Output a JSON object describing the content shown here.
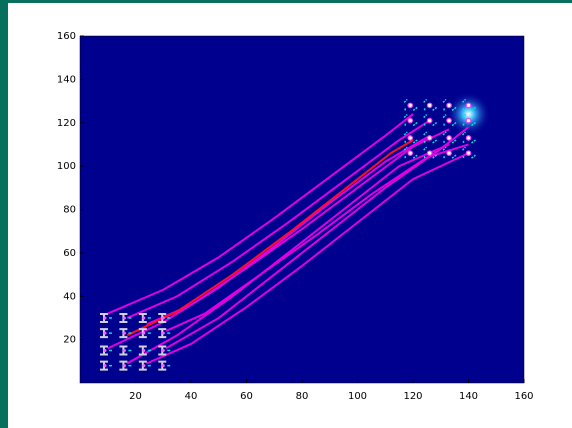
{
  "chart_data": {
    "type": "line",
    "xlim": [
      0,
      160
    ],
    "ylim": [
      0,
      160
    ],
    "xticks": [
      20,
      40,
      60,
      80,
      100,
      120,
      140,
      160
    ],
    "yticks": [
      20,
      40,
      60,
      80,
      100,
      120,
      140,
      160
    ],
    "background": "#00008f",
    "grid": false,
    "series": [
      {
        "color": "#e000e0",
        "x": [
          10,
          30,
          50,
          70,
          90,
          110,
          120
        ],
        "values": [
          32,
          43,
          58,
          76,
          95,
          114,
          124
        ]
      },
      {
        "color": "#e000e0",
        "x": [
          17,
          35,
          55,
          75,
          95,
          115,
          126
        ],
        "values": [
          30,
          40,
          56,
          74,
          93,
          112,
          121
        ]
      },
      {
        "color": "#e000e0",
        "x": [
          24,
          40,
          60,
          80,
          100,
          120,
          133
        ],
        "values": [
          27,
          36,
          53,
          71,
          90,
          109,
          117
        ]
      },
      {
        "color": "#e000e0",
        "x": [
          31,
          45,
          65,
          85,
          105,
          125,
          140
        ],
        "values": [
          24,
          32,
          50,
          68,
          87,
          104,
          110
        ]
      },
      {
        "color": "#e000e0",
        "x": [
          10,
          30,
          50,
          70,
          90,
          110,
          126
        ],
        "values": [
          16,
          28,
          44,
          63,
          83,
          102,
          114
        ]
      },
      {
        "color": "#e000e0",
        "x": [
          24,
          40,
          60,
          80,
          100,
          120,
          140
        ],
        "values": [
          9,
          18,
          35,
          54,
          74,
          94,
          106
        ]
      },
      {
        "color": "#e000e0",
        "x": [
          31,
          50,
          70,
          90,
          110,
          130,
          140
        ],
        "values": [
          16,
          30,
          50,
          70,
          90,
          108,
          118
        ]
      },
      {
        "color": "#e000e0",
        "x": [
          17,
          35,
          55,
          75,
          95,
          115,
          133
        ],
        "values": [
          9,
          22,
          40,
          60,
          80,
          100,
          110
        ]
      },
      {
        "color": "#ff1020",
        "x": [
          17,
          35,
          55,
          75,
          95,
          112,
          120
        ],
        "values": [
          22,
          33,
          50,
          69,
          89,
          106,
          112
        ]
      },
      {
        "mode": "start",
        "color": "#d0d0e0",
        "x": [
          9,
          16,
          23,
          30,
          9,
          16,
          23,
          30,
          9,
          16,
          23,
          30,
          9,
          16,
          23,
          30
        ],
        "values": [
          30,
          30,
          30,
          30,
          23,
          23,
          23,
          23,
          15,
          15,
          15,
          15,
          8,
          8,
          8,
          8
        ]
      },
      {
        "mode": "goal",
        "color": "#00e0e0",
        "x": [
          119,
          126,
          133,
          140,
          119,
          126,
          133,
          140,
          119,
          126,
          133,
          140,
          119,
          126,
          133,
          140
        ],
        "values": [
          128,
          128,
          128,
          128,
          121,
          121,
          121,
          121,
          113,
          113,
          113,
          113,
          106,
          106,
          106,
          106
        ]
      }
    ]
  }
}
